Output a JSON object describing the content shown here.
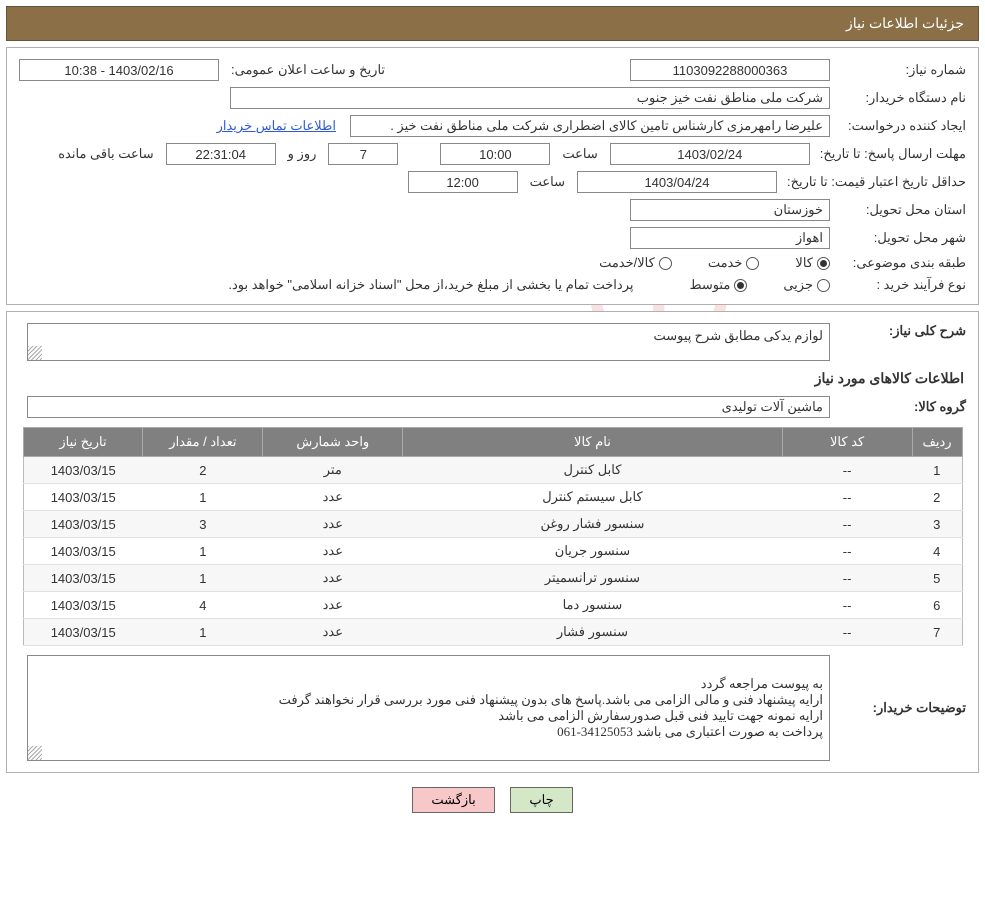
{
  "header": {
    "title": "جزئیات اطلاعات نیاز"
  },
  "info": {
    "labels": {
      "need_no": "شماره نیاز:",
      "announce_datetime": "تاریخ و ساعت اعلان عمومی:",
      "buyer_org": "نام دستگاه خریدار:",
      "requester": "ایجاد کننده درخواست:",
      "contact_link": "اطلاعات تماس خریدار",
      "reply_deadline": "مهلت ارسال پاسخ:",
      "price_validity": "حداقل تاریخ اعتبار قیمت:",
      "to_date": "تا تاریخ:",
      "time": "ساعت",
      "days_and": "روز و",
      "remaining": "ساعت باقی مانده",
      "delivery_province": "استان محل تحویل:",
      "delivery_city": "شهر محل تحویل:",
      "category": "طبقه بندی موضوعی:",
      "radio_goods": "کالا",
      "radio_service": "خدمت",
      "radio_goods_service": "کالا/خدمت",
      "purchase_type": "نوع فرآیند خرید :",
      "radio_partial": "جزیی",
      "radio_medium": "متوسط",
      "payment_note": "پرداخت تمام یا بخشی از مبلغ خرید،از محل \"اسناد خزانه اسلامی\" خواهد بود."
    },
    "values": {
      "need_no": "1103092288000363",
      "announce_datetime": "1403/02/16 - 10:38",
      "buyer_org": "شرکت ملی مناطق نفت خیز جنوب",
      "requester": "علیرضا رامهرمزی کارشناس تامین کالای اضطراری شرکت ملی مناطق نفت خیز .",
      "reply_date": "1403/02/24",
      "reply_time": "10:00",
      "remaining_days": "7",
      "remaining_time": "22:31:04",
      "validity_date": "1403/04/24",
      "validity_time": "12:00",
      "province": "خوزستان",
      "city": "اهواز"
    }
  },
  "need": {
    "labels": {
      "overview": "شرح کلی نیاز:",
      "items_heading": "اطلاعات کالاهای مورد نیاز",
      "group": "گروه کالا:",
      "buyer_notes": "توضیحات خریدار:"
    },
    "overview_text": "لوازم یدکی مطابق شرح پیوست",
    "group_text": "ماشین آلات تولیدی",
    "buyer_notes_text": "به پیوست مراجعه گردد\nارایه پیشنهاد فنی و مالی الزامی می باشد.پاسخ های بدون پیشنهاد فنی مورد بررسی قرار نخواهند گرفت\nارایه نمونه جهت تایید فنی قبل صدورسفارش الزامی می باشد\nپرداخت به صورت اعتباری می باشد 34125053-061"
  },
  "table": {
    "headers": {
      "idx": "ردیف",
      "code": "کد کالا",
      "name": "نام کالا",
      "unit": "واحد شمارش",
      "qty": "تعداد / مقدار",
      "date": "تاریخ نیاز"
    },
    "rows": [
      {
        "idx": "1",
        "code": "--",
        "name": "کابل کنترل",
        "unit": "متر",
        "qty": "2",
        "date": "1403/03/15"
      },
      {
        "idx": "2",
        "code": "--",
        "name": "کابل سیستم کنترل",
        "unit": "عدد",
        "qty": "1",
        "date": "1403/03/15"
      },
      {
        "idx": "3",
        "code": "--",
        "name": "سنسور فشار روغن",
        "unit": "عدد",
        "qty": "3",
        "date": "1403/03/15"
      },
      {
        "idx": "4",
        "code": "--",
        "name": "سنسور جریان",
        "unit": "عدد",
        "qty": "1",
        "date": "1403/03/15"
      },
      {
        "idx": "5",
        "code": "--",
        "name": "سنسور ترانسمیتر",
        "unit": "عدد",
        "qty": "1",
        "date": "1403/03/15"
      },
      {
        "idx": "6",
        "code": "--",
        "name": "سنسور دما",
        "unit": "عدد",
        "qty": "4",
        "date": "1403/03/15"
      },
      {
        "idx": "7",
        "code": "--",
        "name": "سنسور فشار",
        "unit": "عدد",
        "qty": "1",
        "date": "1403/03/15"
      }
    ]
  },
  "buttons": {
    "print": "چاپ",
    "back": "بازگشت"
  },
  "style": {
    "header_bg": "#8b6f47",
    "header_fg": "#ffffff",
    "table_header_bg": "#808080",
    "table_header_fg": "#ffffff",
    "btn_print_bg": "#d4e8c8",
    "btn_back_bg": "#f8c8c8",
    "link_color": "#2e5bd8",
    "watermark_text": "AriaTender.net"
  }
}
